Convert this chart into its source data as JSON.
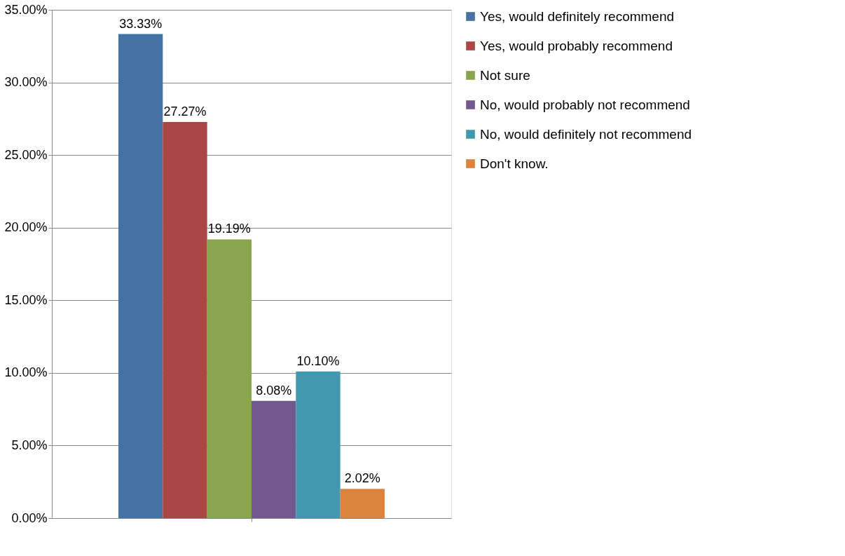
{
  "chart_data": {
    "type": "bar",
    "categories": [
      null
    ],
    "series": [
      {
        "name": "Yes, would definitely recommend",
        "color": "#4572a7",
        "values": [
          33.33
        ],
        "value_labels": [
          "33.33%"
        ]
      },
      {
        "name": "Yes, would probably recommend",
        "color": "#aa4643",
        "values": [
          27.27
        ],
        "value_labels": [
          "27.27%"
        ]
      },
      {
        "name": "Not sure",
        "color": "#89a54e",
        "values": [
          19.19
        ],
        "value_labels": [
          "19.19%"
        ]
      },
      {
        "name": "No, would probably not recommend",
        "color": "#71588f",
        "values": [
          8.08
        ],
        "value_labels": [
          "8.08%"
        ]
      },
      {
        "name": "No, would definitely not recommend",
        "color": "#4198af",
        "values": [
          10.1
        ],
        "value_labels": [
          "10.10%"
        ]
      },
      {
        "name": "Don't know.",
        "color": "#db843d",
        "values": [
          2.02
        ],
        "value_labels": [
          "2.02%"
        ]
      }
    ],
    "ylim": [
      0,
      35
    ],
    "yticks": [
      {
        "value": 0,
        "label": "0.00%"
      },
      {
        "value": 5,
        "label": "5.00%"
      },
      {
        "value": 10,
        "label": "10.00%"
      },
      {
        "value": 15,
        "label": "15.00%"
      },
      {
        "value": 20,
        "label": "20.00%"
      },
      {
        "value": 25,
        "label": "25.00%"
      },
      {
        "value": 30,
        "label": "30.00%"
      },
      {
        "value": 35,
        "label": "35.00%"
      }
    ],
    "grid": "y",
    "legend": "right"
  }
}
